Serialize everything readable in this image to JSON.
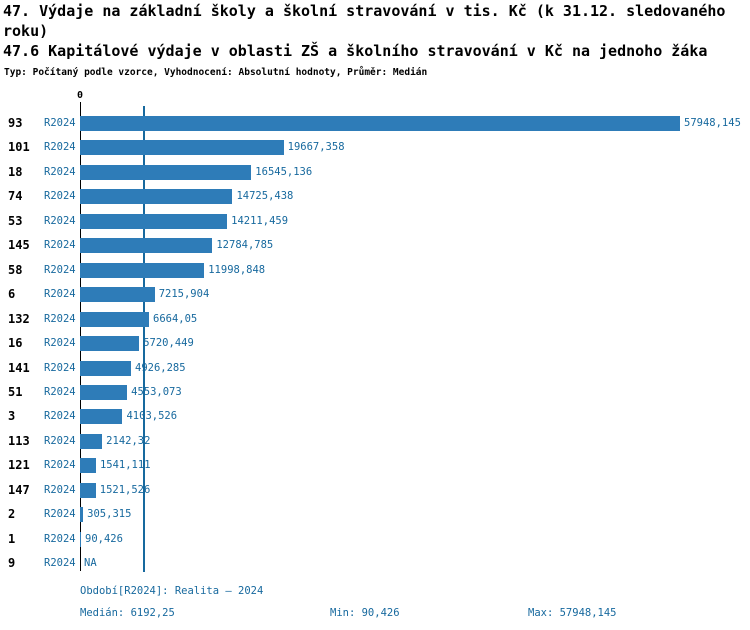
{
  "header": {
    "title_line1": "47. Výdaje na základní školy a školní stravování v tis. Kč (k 31.12. sledovaného roku)",
    "title_line2": "47.6 Kapitálové výdaje v oblasti ZŠ a školního stravování v Kč na jednoho žáka",
    "meta": "Typ: Počítaný podle vzorce, Vyhodnocení: Absolutní hodnoty, Průměr: Medián"
  },
  "chart_data": {
    "type": "bar",
    "orientation": "horizontal",
    "zero_label": "0",
    "xlim": [
      0,
      57948.145
    ],
    "series_name": "R2024",
    "median": 6192.25,
    "min": 90.426,
    "max": 57948.145,
    "rows": [
      {
        "category": "93",
        "period": "R2024",
        "value": 57948.145,
        "display": "57948,145"
      },
      {
        "category": "101",
        "period": "R2024",
        "value": 19667.358,
        "display": "19667,358"
      },
      {
        "category": "18",
        "period": "R2024",
        "value": 16545.136,
        "display": "16545,136"
      },
      {
        "category": "74",
        "period": "R2024",
        "value": 14725.438,
        "display": "14725,438"
      },
      {
        "category": "53",
        "period": "R2024",
        "value": 14211.459,
        "display": "14211,459"
      },
      {
        "category": "145",
        "period": "R2024",
        "value": 12784.785,
        "display": "12784,785"
      },
      {
        "category": "58",
        "period": "R2024",
        "value": 11998.848,
        "display": "11998,848"
      },
      {
        "category": "6",
        "period": "R2024",
        "value": 7215.904,
        "display": "7215,904"
      },
      {
        "category": "132",
        "period": "R2024",
        "value": 6664.05,
        "display": "6664,05"
      },
      {
        "category": "16",
        "period": "R2024",
        "value": 5720.449,
        "display": "5720,449"
      },
      {
        "category": "141",
        "period": "R2024",
        "value": 4926.285,
        "display": "4926,285"
      },
      {
        "category": "51",
        "period": "R2024",
        "value": 4553.073,
        "display": "4553,073"
      },
      {
        "category": "3",
        "period": "R2024",
        "value": 4103.526,
        "display": "4103,526"
      },
      {
        "category": "113",
        "period": "R2024",
        "value": 2142.32,
        "display": "2142,32"
      },
      {
        "category": "121",
        "period": "R2024",
        "value": 1541.111,
        "display": "1541,111"
      },
      {
        "category": "147",
        "period": "R2024",
        "value": 1521.526,
        "display": "1521,526"
      },
      {
        "category": "2",
        "period": "R2024",
        "value": 305.315,
        "display": "305,315"
      },
      {
        "category": "1",
        "period": "R2024",
        "value": 90.426,
        "display": "90,426"
      },
      {
        "category": "9",
        "period": "R2024",
        "value": null,
        "display": "NA"
      }
    ]
  },
  "footer": {
    "period_note": "Období[R2024]: Realita – 2024",
    "median_label": "Medián: 6192,25",
    "min_label": "Min: 90,426",
    "max_label": "Max: 57948,145"
  },
  "colors": {
    "bar": "#2e7cb8",
    "accent_text": "#17699e",
    "axis": "#000000",
    "title": "#000000"
  }
}
